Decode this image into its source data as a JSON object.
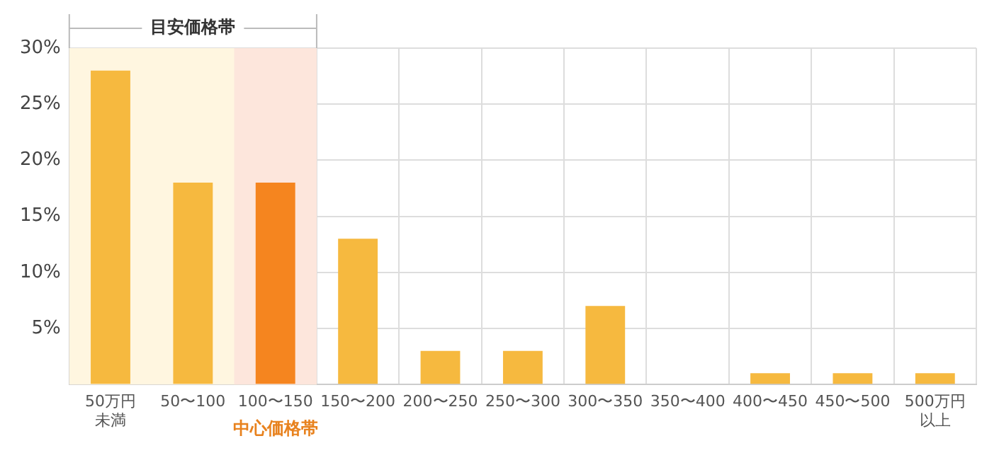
{
  "chart_data": {
    "type": "bar",
    "categories": [
      "50万円未満",
      "50〜100",
      "100〜150",
      "150〜200",
      "200〜250",
      "250〜300",
      "300〜350",
      "350〜400",
      "400〜450",
      "450〜500",
      "500万円以上"
    ],
    "values": [
      28,
      18,
      18,
      13,
      3,
      3,
      7,
      0,
      1,
      1,
      1
    ],
    "colors": [
      "#f6b93f",
      "#f6b93f",
      "#f5851f",
      "#f6b93f",
      "#f6b93f",
      "#f6b93f",
      "#f6b93f",
      "#f6b93f",
      "#f6b93f",
      "#f6b93f",
      "#f6b93f"
    ],
    "ylim": [
      0,
      30
    ],
    "yticks": [
      {
        "value": 0,
        "label": null
      },
      {
        "value": 5,
        "label": "5%"
      },
      {
        "value": 10,
        "label": "10%"
      },
      {
        "value": 15,
        "label": "15%"
      },
      {
        "value": 20,
        "label": "20%"
      },
      {
        "value": 25,
        "label": "25%"
      },
      {
        "value": 30,
        "label": "30%"
      }
    ],
    "bands": [
      {
        "axis": "x",
        "from": "50万円未満",
        "to": "100〜150",
        "label": "目安価格帯",
        "color": "#fff6e0"
      },
      {
        "axis": "x",
        "from": "100〜150",
        "to": "100〜150",
        "label": "中心価格帯",
        "color": "#fde6dc"
      }
    ],
    "grid": true,
    "legend": false
  }
}
